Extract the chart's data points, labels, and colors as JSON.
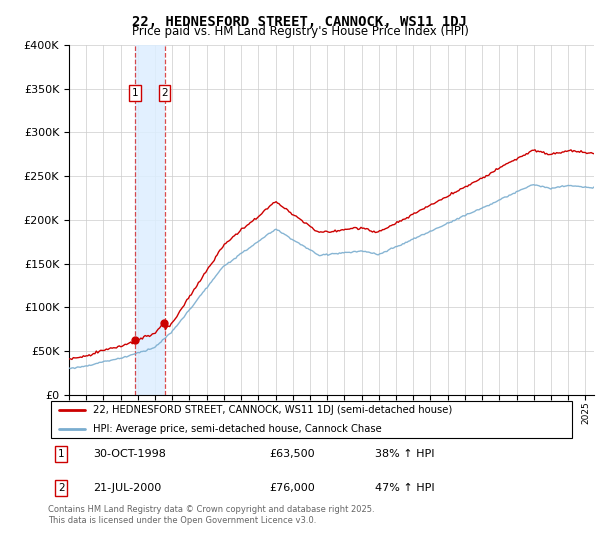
{
  "title": "22, HEDNESFORD STREET, CANNOCK, WS11 1DJ",
  "subtitle": "Price paid vs. HM Land Registry's House Price Index (HPI)",
  "title_fontsize": 10,
  "subtitle_fontsize": 8.5,
  "red_label": "22, HEDNESFORD STREET, CANNOCK, WS11 1DJ (semi-detached house)",
  "blue_label": "HPI: Average price, semi-detached house, Cannock Chase",
  "sale1_date": 1998.83,
  "sale1_price": 63500,
  "sale1_label": "1",
  "sale1_text": "30-OCT-1998",
  "sale1_amount": "£63,500",
  "sale1_pct": "38% ↑ HPI",
  "sale2_date": 2000.55,
  "sale2_price": 76000,
  "sale2_label": "2",
  "sale2_text": "21-JUL-2000",
  "sale2_amount": "£76,000",
  "sale2_pct": "47% ↑ HPI",
  "footnote": "Contains HM Land Registry data © Crown copyright and database right 2025.\nThis data is licensed under the Open Government Licence v3.0.",
  "ylim": [
    0,
    400000
  ],
  "xlim": [
    1995,
    2025.5
  ],
  "red_color": "#cc0000",
  "blue_color": "#7aadcf",
  "shade_color": "#ddeeff",
  "background_color": "#ffffff",
  "grid_color": "#cccccc"
}
